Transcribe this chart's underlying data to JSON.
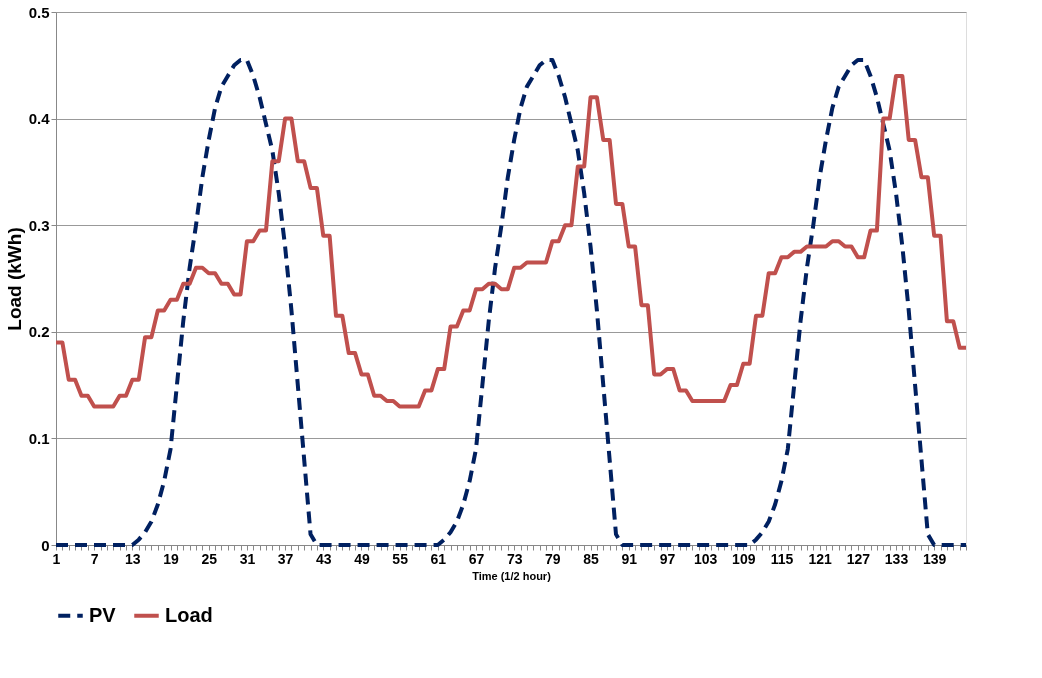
{
  "chart_data": {
    "type": "line",
    "xlabel": "Time (1/2 hour)",
    "ylabel": "Load (kWh)",
    "categories": [
      "1",
      null,
      null,
      null,
      null,
      null,
      "7",
      null,
      null,
      null,
      null,
      null,
      "13",
      null,
      null,
      null,
      null,
      null,
      "19",
      null,
      null,
      null,
      null,
      null,
      "25",
      null,
      null,
      null,
      null,
      null,
      "31",
      null,
      null,
      null,
      null,
      null,
      "37",
      null,
      null,
      null,
      null,
      null,
      "43",
      null,
      null,
      null,
      null,
      null,
      "49",
      null,
      null,
      null,
      null,
      null,
      "55",
      null,
      null,
      null,
      null,
      null,
      "61",
      null,
      null,
      null,
      null,
      null,
      "67",
      null,
      null,
      null,
      null,
      null,
      "73",
      null,
      null,
      null,
      null,
      null,
      "79",
      null,
      null,
      null,
      null,
      null,
      "85",
      null,
      null,
      null,
      null,
      null,
      "91",
      null,
      null,
      null,
      null,
      null,
      "97",
      null,
      null,
      null,
      null,
      null,
      "103",
      null,
      null,
      null,
      null,
      null,
      "109",
      null,
      null,
      null,
      null,
      null,
      "115",
      null,
      null,
      null,
      null,
      null,
      "121",
      null,
      null,
      null,
      null,
      null,
      "127",
      null,
      null,
      null,
      null,
      null,
      "133",
      null,
      null,
      null,
      null,
      null,
      "139",
      null,
      null,
      null,
      null,
      null
    ],
    "series": [
      {
        "name": "PV",
        "color": "#002060",
        "line_style": "dashed",
        "values": [
          0,
          0,
          0,
          0,
          0,
          0,
          0,
          0,
          0,
          0,
          0,
          0,
          0,
          0.005,
          0.012,
          0.022,
          0.038,
          0.06,
          0.09,
          0.15,
          0.21,
          0.26,
          0.3,
          0.345,
          0.38,
          0.41,
          0.43,
          0.44,
          0.45,
          0.455,
          0.455,
          0.44,
          0.42,
          0.395,
          0.37,
          0.33,
          0.28,
          0.22,
          0.15,
          0.08,
          0.01,
          0,
          0,
          0,
          0,
          0,
          0,
          0,
          0,
          0,
          0,
          0,
          0,
          0,
          0,
          0,
          0,
          0,
          0,
          0,
          0,
          0.005,
          0.012,
          0.022,
          0.038,
          0.06,
          0.09,
          0.15,
          0.21,
          0.26,
          0.3,
          0.345,
          0.38,
          0.41,
          0.43,
          0.44,
          0.45,
          0.455,
          0.455,
          0.44,
          0.42,
          0.395,
          0.37,
          0.33,
          0.28,
          0.22,
          0.15,
          0.08,
          0.01,
          0,
          0,
          0,
          0,
          0,
          0,
          0,
          0,
          0,
          0,
          0,
          0,
          0,
          0,
          0,
          0,
          0,
          0,
          0,
          0,
          0,
          0.005,
          0.012,
          0.022,
          0.038,
          0.06,
          0.09,
          0.15,
          0.21,
          0.26,
          0.3,
          0.345,
          0.38,
          0.41,
          0.43,
          0.44,
          0.45,
          0.455,
          0.455,
          0.44,
          0.42,
          0.395,
          0.37,
          0.33,
          0.28,
          0.22,
          0.15,
          0.08,
          0.01,
          0,
          0,
          0,
          0,
          0,
          0
        ]
      },
      {
        "name": "Load",
        "color": "#c0504d",
        "line_style": "solid",
        "values": [
          0.19,
          0.19,
          0.155,
          0.155,
          0.14,
          0.14,
          0.13,
          0.13,
          0.13,
          0.13,
          0.14,
          0.14,
          0.155,
          0.155,
          0.195,
          0.195,
          0.22,
          0.22,
          0.23,
          0.23,
          0.245,
          0.245,
          0.26,
          0.26,
          0.255,
          0.255,
          0.245,
          0.245,
          0.235,
          0.235,
          0.285,
          0.285,
          0.295,
          0.295,
          0.36,
          0.36,
          0.4,
          0.4,
          0.36,
          0.36,
          0.335,
          0.335,
          0.29,
          0.29,
          0.215,
          0.215,
          0.18,
          0.18,
          0.16,
          0.16,
          0.14,
          0.14,
          0.135,
          0.135,
          0.13,
          0.13,
          0.13,
          0.13,
          0.145,
          0.145,
          0.165,
          0.165,
          0.205,
          0.205,
          0.22,
          0.22,
          0.24,
          0.24,
          0.245,
          0.245,
          0.24,
          0.24,
          0.26,
          0.26,
          0.265,
          0.265,
          0.265,
          0.265,
          0.285,
          0.285,
          0.3,
          0.3,
          0.355,
          0.355,
          0.42,
          0.42,
          0.38,
          0.38,
          0.32,
          0.32,
          0.28,
          0.28,
          0.225,
          0.225,
          0.16,
          0.16,
          0.165,
          0.165,
          0.145,
          0.145,
          0.135,
          0.135,
          0.135,
          0.135,
          0.135,
          0.135,
          0.15,
          0.15,
          0.17,
          0.17,
          0.215,
          0.215,
          0.255,
          0.255,
          0.27,
          0.27,
          0.275,
          0.275,
          0.28,
          0.28,
          0.28,
          0.28,
          0.285,
          0.285,
          0.28,
          0.28,
          0.27,
          0.27,
          0.295,
          0.295,
          0.4,
          0.4,
          0.44,
          0.44,
          0.38,
          0.38,
          0.345,
          0.345,
          0.29,
          0.29,
          0.21,
          0.21,
          0.185,
          0.185
        ]
      }
    ],
    "ylim": [
      0,
      0.5
    ],
    "yticks": [
      0,
      0.1,
      0.2,
      0.3,
      0.4,
      0.5
    ],
    "grid": "y",
    "legend": "bottom",
    "marker": "none"
  }
}
